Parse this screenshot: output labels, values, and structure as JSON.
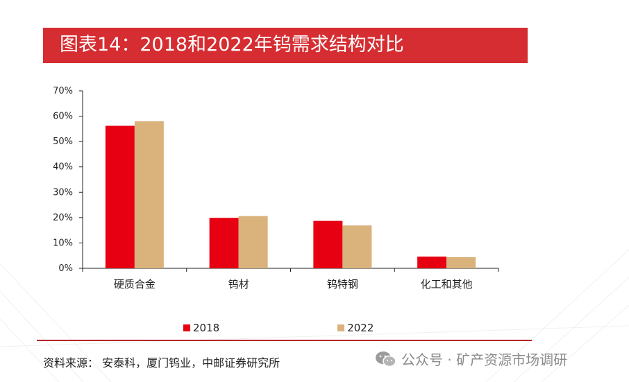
{
  "title": "图表14：2018和2022年钨需求结构对比",
  "chart_data": {
    "type": "bar",
    "categories": [
      "硬质合金",
      "钨材",
      "钨特钢",
      "化工和其他"
    ],
    "series": [
      {
        "name": "2018",
        "values": [
          56.2,
          19.9,
          18.7,
          4.6
        ],
        "color": "#e60012"
      },
      {
        "name": "2022",
        "values": [
          58.0,
          20.6,
          16.9,
          4.4
        ],
        "color": "#d9b27c"
      }
    ],
    "yticks": [
      "0%",
      "10%",
      "20%",
      "30%",
      "40%",
      "50%",
      "60%",
      "70%"
    ],
    "ylim": [
      0,
      70
    ],
    "grid": false,
    "legend_position": "bottom"
  },
  "source": "资料来源：  安泰科，厦门钨业，中邮证券研究所",
  "watermark": "公众号 · 矿产资源市场调研",
  "colors": {
    "banner": "#d52d31",
    "divider": "#b5262a",
    "watermark": "#8a8a8a"
  },
  "icons": {
    "watermark": "wechat-icon"
  }
}
